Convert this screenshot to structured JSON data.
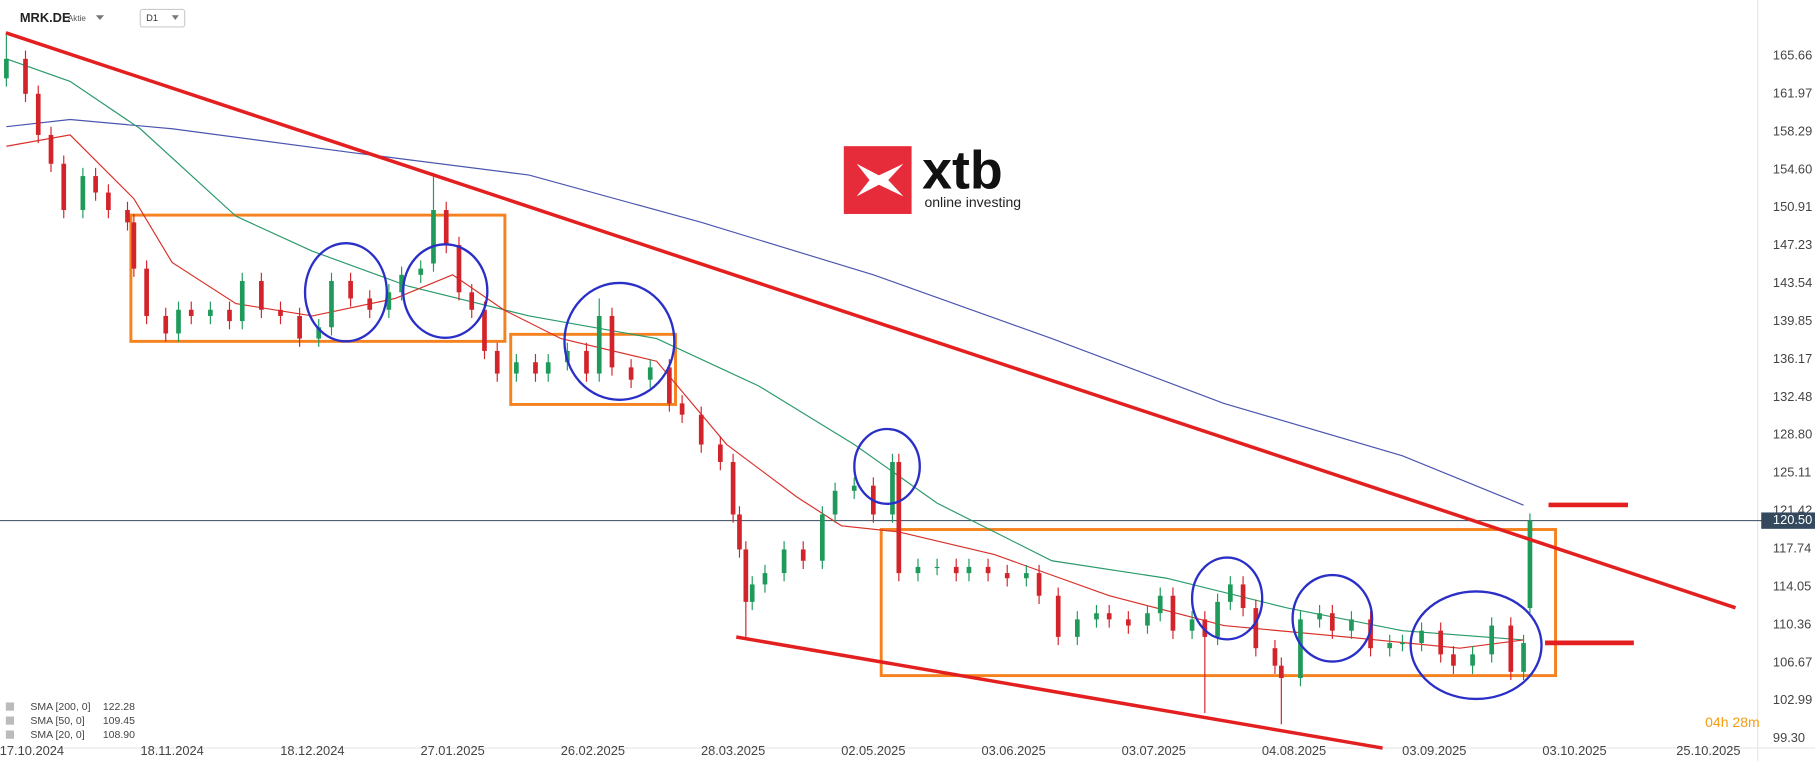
{
  "header": {
    "symbol": "MRK.DE",
    "asset_type": "Aktie",
    "timeframe": "D1"
  },
  "logo": {
    "brand": "xtb",
    "tagline": "online investing"
  },
  "timer": "04h 28m",
  "chart_data": {
    "type": "candlestick",
    "up_color": "#1f9a5b",
    "down_color": "#d3232b",
    "grid": false,
    "x": [
      0,
      3,
      5,
      7,
      9,
      12,
      14,
      16,
      19,
      20,
      22,
      25,
      27,
      29,
      32,
      35,
      37,
      40,
      43,
      46,
      49,
      51,
      54,
      57,
      60,
      62,
      65,
      67,
      69,
      71,
      73,
      75,
      77,
      80,
      83,
      85,
      88,
      91,
      93,
      95,
      98,
      101,
      104,
      106,
      109,
      112,
      114,
      115,
      116,
      117,
      119,
      122,
      125,
      128,
      130,
      133,
      136,
      139,
      140,
      143,
      146,
      149,
      151,
      154,
      157,
      160,
      162,
      165,
      168,
      171,
      173,
      176,
      179,
      181,
      183,
      186,
      188,
      190,
      192,
      194,
      196,
      199,
      200,
      203,
      206,
      208,
      211,
      214,
      217,
      219,
      222,
      225,
      227,
      230,
      233,
      236,
      238,
      239
    ],
    "open": [
      163.5,
      165.4,
      162,
      158,
      155.2,
      150.7,
      154,
      152.4,
      150.7,
      149.5,
      145,
      140.4,
      138.7,
      141,
      140.4,
      141,
      139.9,
      143.8,
      141,
      140.4,
      138.2,
      139.3,
      143.8,
      142.1,
      141,
      142.7,
      144.4,
      145.5,
      150.7,
      147.3,
      142.7,
      141,
      137,
      134.8,
      135.9,
      134.8,
      135.9,
      137,
      134.8,
      140.4,
      135.4,
      134.2,
      135.4,
      131.9,
      130.8,
      127.9,
      126.2,
      121.1,
      117.7,
      112.6,
      114.3,
      115.4,
      117.7,
      116.6,
      121.1,
      123.4,
      123.9,
      121.1,
      126.2,
      115.4,
      116,
      116,
      115.4,
      116,
      115.4,
      114.9,
      115.4,
      113.2,
      109.2,
      110.9,
      111.5,
      110.9,
      110.3,
      111.5,
      113.2,
      109.8,
      110.9,
      109.2,
      112.6,
      114.3,
      112,
      108.1,
      106.4,
      105.2,
      110.9,
      111.5,
      109.8,
      110.9,
      108.1,
      108.6,
      108.6,
      109.8,
      107.5,
      106.4,
      107.5,
      110.3,
      105.8,
      112
    ],
    "high": [
      167.7,
      166.2,
      162.8,
      158.8,
      156,
      154.8,
      154.8,
      153.2,
      151.5,
      150.3,
      145.8,
      141.2,
      141.8,
      141.8,
      141.8,
      141.8,
      144.6,
      144.6,
      141.8,
      141.2,
      140.1,
      144.6,
      144.6,
      142.9,
      143.5,
      145.2,
      145.8,
      154.3,
      151.5,
      148.1,
      143.5,
      141.8,
      137.8,
      136.7,
      136.7,
      136.7,
      137.8,
      137.8,
      142.1,
      141.2,
      136.2,
      136.2,
      136.2,
      132.7,
      131.6,
      128.7,
      127,
      121.9,
      118.5,
      115.1,
      116.2,
      118.5,
      118.5,
      121.9,
      124.2,
      124.7,
      124.7,
      127,
      127,
      116.8,
      116.8,
      116.8,
      116.8,
      116.8,
      116.2,
      116.2,
      116.2,
      114,
      111.7,
      112.3,
      112.3,
      111.7,
      112.3,
      114,
      114,
      111.7,
      111.7,
      113.4,
      115.1,
      115.1,
      112.8,
      108.9,
      107.2,
      111.7,
      112.3,
      112.3,
      111.7,
      111.7,
      109.4,
      109.4,
      110.6,
      110.6,
      108.3,
      108.3,
      111.1,
      111.1,
      109.4,
      121.2
    ],
    "low": [
      162.7,
      161.2,
      157.2,
      154.4,
      149.9,
      149.9,
      151.6,
      149.9,
      148.7,
      144.2,
      139.6,
      137.9,
      137.9,
      139.6,
      139.6,
      139.1,
      139.1,
      140.2,
      139.6,
      137.4,
      137.4,
      138.5,
      141.3,
      140.2,
      140.2,
      141.9,
      143.6,
      144.7,
      146.5,
      141.9,
      140.2,
      136.2,
      134,
      134,
      134,
      134,
      135.1,
      134,
      134,
      134.6,
      133.4,
      133.4,
      131.1,
      130,
      127.1,
      125.4,
      120.3,
      116.9,
      109.2,
      111.8,
      113.5,
      114.6,
      115.8,
      115.8,
      120.3,
      122.6,
      120.3,
      120.3,
      114.6,
      114.6,
      115.2,
      114.6,
      114.6,
      114.6,
      114.1,
      114.1,
      112.4,
      108.4,
      108.4,
      110.1,
      110.1,
      109.5,
      109.5,
      110.7,
      109,
      109,
      101.8,
      108.4,
      111.8,
      111.2,
      107.3,
      105.6,
      100.7,
      104.4,
      110.1,
      109,
      109,
      107.3,
      107.3,
      107.8,
      107.8,
      106.7,
      105.6,
      105.6,
      106.7,
      105,
      105,
      111.5
    ],
    "close": [
      165.4,
      162,
      158,
      155.2,
      150.7,
      154,
      152.4,
      150.7,
      149.5,
      145,
      140.4,
      138.7,
      141,
      140.4,
      141,
      139.9,
      143.8,
      141,
      140.4,
      138.2,
      139.3,
      143.8,
      142.1,
      141,
      142.7,
      144.4,
      145,
      150.7,
      147.3,
      142.7,
      141,
      137,
      134.8,
      135.9,
      134.8,
      135.9,
      137,
      134.8,
      140.4,
      135.4,
      134.2,
      135.4,
      131.9,
      130.8,
      127.9,
      126.2,
      121.1,
      117.7,
      112.6,
      114.3,
      115.4,
      117.7,
      116.6,
      121.1,
      123.4,
      123.9,
      121.1,
      126.2,
      115.4,
      116,
      116,
      115.4,
      116,
      115.4,
      114.9,
      115.4,
      113.2,
      109.2,
      110.9,
      111.5,
      110.9,
      110.3,
      111.5,
      113.2,
      109.8,
      110.9,
      109.2,
      112.6,
      114.3,
      112,
      108.1,
      106.4,
      105.2,
      110.9,
      111.5,
      109.8,
      110.9,
      108.1,
      108.6,
      108.6,
      109.8,
      107.5,
      106.4,
      107.5,
      110.3,
      105.8,
      108.6,
      120.5
    ],
    "series": [
      {
        "name": "SMA [200, 0]",
        "legend_value": "122.28",
        "color": "#4a55b0",
        "x": [
          0,
          10,
          26,
          54,
          82,
          109,
          136,
          164,
          191,
          219,
          238
        ],
        "values": [
          158.8,
          159.5,
          158.6,
          156.3,
          154.1,
          149.5,
          144.4,
          138.2,
          131.9,
          126.8,
          122.0
        ]
      },
      {
        "name": "SMA [50, 0]",
        "legend_value": "109.45",
        "color": "#2a9a6a",
        "x": [
          0,
          10,
          21,
          36,
          48,
          63,
          82,
          102,
          118,
          133,
          146,
          164,
          182,
          201,
          219,
          238
        ],
        "values": [
          165.4,
          163.2,
          158.6,
          150.1,
          146.7,
          143.3,
          140.4,
          138.2,
          133.6,
          127.9,
          122.2,
          116.6,
          114.9,
          112,
          109.8,
          108.9
        ]
      },
      {
        "name": "SMA [20, 0]",
        "legend_value": "108.90",
        "color": "#d9302a",
        "x": [
          0,
          10,
          20,
          26,
          36,
          48,
          61,
          70,
          78,
          87,
          102,
          113,
          124,
          131,
          140,
          155,
          173,
          191,
          210,
          228,
          238
        ],
        "values": [
          156.9,
          158,
          151.8,
          145.6,
          141.6,
          140.4,
          142.1,
          144.4,
          141,
          138.2,
          136,
          127.9,
          122.8,
          120,
          119.4,
          117.2,
          113.2,
          110.3,
          109.2,
          108.1,
          108.9
        ]
      }
    ],
    "current_price": {
      "value": 120.5,
      "label": "120.50"
    },
    "xlim": [
      -1,
      274
    ],
    "xticks": [
      {
        "value": 4,
        "label": "17.10.2024"
      },
      {
        "value": 26,
        "label": "18.11.2024"
      },
      {
        "value": 48,
        "label": "18.12.2024"
      },
      {
        "value": 70,
        "label": "27.01.2025"
      },
      {
        "value": 92,
        "label": "26.02.2025"
      },
      {
        "value": 114,
        "label": "28.03.2025"
      },
      {
        "value": 136,
        "label": "02.05.2025"
      },
      {
        "value": 158,
        "label": "03.06.2025"
      },
      {
        "value": 180,
        "label": "03.07.2025"
      },
      {
        "value": 202,
        "label": "04.08.2025"
      },
      {
        "value": 224,
        "label": "03.09.2025"
      },
      {
        "value": 246,
        "label": "03.10.2025"
      },
      {
        "value": 267,
        "label": "25.10.2025"
      }
    ],
    "ylim": [
      98.39,
      171.11
    ],
    "yticks": [
      165.66,
      161.97,
      158.29,
      {
        "value": 154.6,
        "label": "154.60"
      },
      150.91,
      147.23,
      143.54,
      139.85,
      136.17,
      132.48,
      {
        "value": 128.8,
        "label": "128.80"
      },
      125.11,
      121.42,
      117.74,
      114.05,
      110.36,
      106.67,
      102.99,
      {
        "value": 99.3,
        "label": "99.30"
      }
    ]
  }
}
